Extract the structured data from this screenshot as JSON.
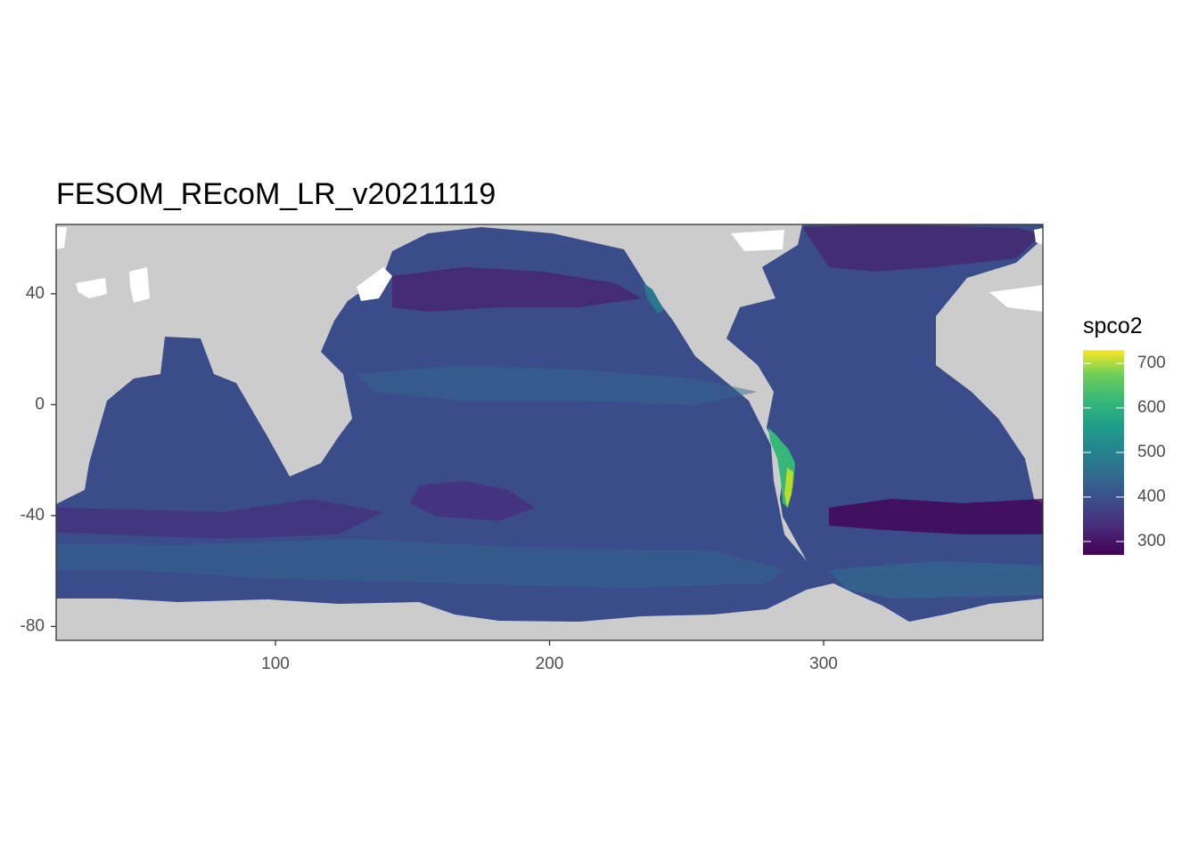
{
  "title": "FESOM_REcoM_LR_v20211119",
  "chart_data": {
    "type": "heatmap",
    "title": "FESOM_REcoM_LR_v20211119",
    "xlabel": "",
    "ylabel": "",
    "xlim": [
      20,
      380
    ],
    "ylim": [
      -85,
      65
    ],
    "x_ticks": [
      {
        "value": 100,
        "label": "100"
      },
      {
        "value": 200,
        "label": "200"
      },
      {
        "value": 300,
        "label": "300"
      }
    ],
    "y_ticks": [
      {
        "value": 40,
        "label": "40"
      },
      {
        "value": 0,
        "label": "0"
      },
      {
        "value": -40,
        "label": "-40"
      },
      {
        "value": -80,
        "label": "-80"
      }
    ],
    "fill_variable": "spco2",
    "colorscale": "viridis",
    "fill_range": [
      270,
      730
    ],
    "land_color": "#cccccc",
    "missing_color": "#ffffff",
    "grid": false,
    "legend": {
      "title": "spco2",
      "placement": "right",
      "breaks": [
        {
          "value": 700,
          "label": "700"
        },
        {
          "value": 600,
          "label": "600"
        },
        {
          "value": 500,
          "label": "500"
        },
        {
          "value": 400,
          "label": "400"
        },
        {
          "value": 300,
          "label": "300"
        }
      ]
    }
  }
}
